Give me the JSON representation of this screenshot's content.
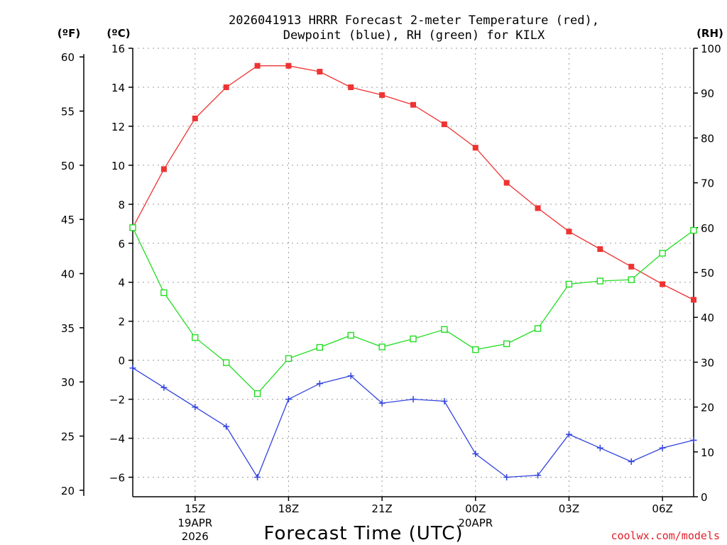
{
  "chart_data": {
    "type": "line",
    "title_lines": [
      "2026041913 HRRR Forecast 2-meter Temperature (red),",
      "Dewpoint (blue), RH (green) for KILX"
    ],
    "xlabel": "Forecast Time (UTC)",
    "credit": "coolwx.com/models",
    "unit_labels": {
      "fahrenheit": "(ºF)",
      "celsius": "(ºC)",
      "rh": "(RH)"
    },
    "x_hours": [
      13,
      14,
      15,
      16,
      17,
      18,
      19,
      20,
      21,
      22,
      23,
      24,
      25,
      26,
      27,
      28,
      29,
      30,
      31
    ],
    "x_ticks": [
      {
        "hour": 15,
        "label": "15Z",
        "sub": [
          "19APR",
          "2026"
        ]
      },
      {
        "hour": 18,
        "label": "18Z",
        "sub": []
      },
      {
        "hour": 21,
        "label": "21Z",
        "sub": []
      },
      {
        "hour": 24,
        "label": "00Z",
        "sub": [
          "20APR"
        ]
      },
      {
        "hour": 27,
        "label": "03Z",
        "sub": []
      },
      {
        "hour": 30,
        "label": "06Z",
        "sub": []
      }
    ],
    "celsius_axis": {
      "ylim": [
        -7,
        16
      ],
      "ticks": [
        "16",
        "14",
        "12",
        "10",
        "8",
        "6",
        "4",
        "2",
        "0",
        "−2",
        "−4",
        "−6"
      ],
      "tick_values": [
        16,
        14,
        12,
        10,
        8,
        6,
        4,
        2,
        0,
        -2,
        -4,
        -6
      ]
    },
    "fahrenheit_axis": {
      "ticks": [
        "60",
        "55",
        "50",
        "45",
        "40",
        "35",
        "30",
        "25",
        "20"
      ],
      "tick_values": [
        60,
        55,
        50,
        45,
        40,
        35,
        30,
        25,
        20
      ]
    },
    "rh_axis": {
      "ylim": [
        0,
        100
      ],
      "ticks": [
        "100",
        "90",
        "80",
        "70",
        "60",
        "50",
        "40",
        "30",
        "20",
        "10",
        "0"
      ],
      "tick_values": [
        100,
        90,
        80,
        70,
        60,
        50,
        40,
        30,
        20,
        10,
        0
      ]
    },
    "series": [
      {
        "name": "Temperature",
        "units": "C",
        "color": "#ee3333",
        "marker": "filled-square",
        "values": [
          6.8,
          9.8,
          12.4,
          14.0,
          15.1,
          15.1,
          14.8,
          14.0,
          13.6,
          13.1,
          12.1,
          10.9,
          9.1,
          7.8,
          6.6,
          5.7,
          4.8,
          3.9,
          3.1
        ]
      },
      {
        "name": "Dewpoint",
        "units": "C",
        "color": "#3344dd",
        "marker": "plus",
        "values": [
          -0.4,
          -1.4,
          -2.4,
          -3.4,
          -6.0,
          -2.0,
          -1.2,
          -0.8,
          -2.2,
          -2.0,
          -2.1,
          -4.8,
          -6.0,
          -5.9,
          -3.8,
          -4.5,
          -5.2,
          -4.5,
          -4.1
        ]
      },
      {
        "name": "RH",
        "units": "%",
        "color": "#22dd22",
        "marker": "open-square",
        "values": [
          60,
          45.5,
          35.5,
          29.9,
          23,
          30.8,
          33.3,
          36,
          33.4,
          35.2,
          37.3,
          32.8,
          34.1,
          37.5,
          47.4,
          48.1,
          48.4,
          54.3,
          59.4
        ]
      }
    ]
  }
}
